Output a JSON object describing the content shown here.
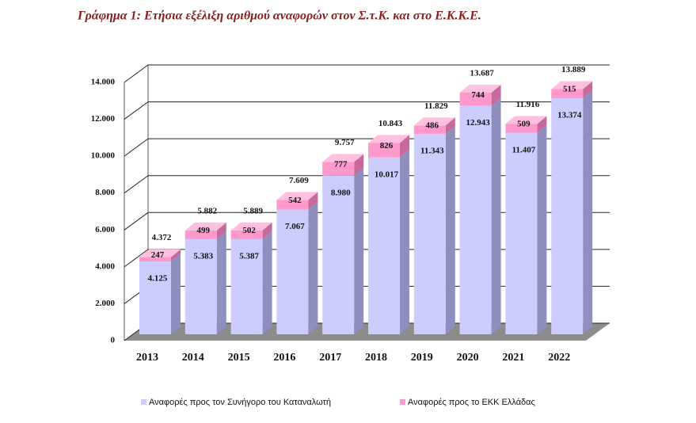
{
  "chart_data": {
    "type": "bar3d_stacked",
    "title": "Γράφημα 1:  Ετήσια εξέλιξη αριθμού αναφορών στον Σ.τ.Κ. και στο Ε.Κ.Κ.Ε.",
    "categories": [
      "2013",
      "2014",
      "2015",
      "2016",
      "2017",
      "2018",
      "2019",
      "2020",
      "2021",
      "2022"
    ],
    "series": [
      {
        "name": "Αναφορές προς τον Συνήγορο του Καταναλωτή",
        "color": "#ccccff",
        "values": [
          4125,
          5383,
          5387,
          7067,
          8980,
          10017,
          11343,
          12943,
          11407,
          13374
        ],
        "value_labels": [
          "4.125",
          "5.383",
          "5.387",
          "7.067",
          "8.980",
          "10.017",
          "11.343",
          "12.943",
          "11.407",
          "13.374"
        ]
      },
      {
        "name": "Αναφορές προς το ΕΚΚ Ελλάδας",
        "color": "#ff99cc",
        "values": [
          247,
          499,
          502,
          542,
          777,
          826,
          486,
          744,
          509,
          515
        ]
      }
    ],
    "totals": {
      "values": [
        4372,
        5882,
        5889,
        7609,
        9757,
        10843,
        11829,
        13687,
        11916,
        13889
      ],
      "value_labels": [
        "4.372",
        "5.882",
        "5.889",
        "7.609",
        "9.757",
        "10.843",
        "11.829",
        "13.687",
        "11.916",
        "13.889"
      ]
    },
    "ylim": [
      0,
      14000
    ],
    "yticks": [
      0,
      {
        "value": 2000,
        "label": "2.000"
      },
      {
        "value": 4000,
        "label": "4.000"
      },
      {
        "value": 6000,
        "label": "6.000"
      },
      {
        "value": 8000,
        "label": "8.000"
      },
      {
        "value": 10000,
        "label": "10.000"
      },
      {
        "value": 12000,
        "label": "12.000"
      },
      {
        "value": 14000,
        "label": "14.000"
      }
    ],
    "grid": true
  }
}
